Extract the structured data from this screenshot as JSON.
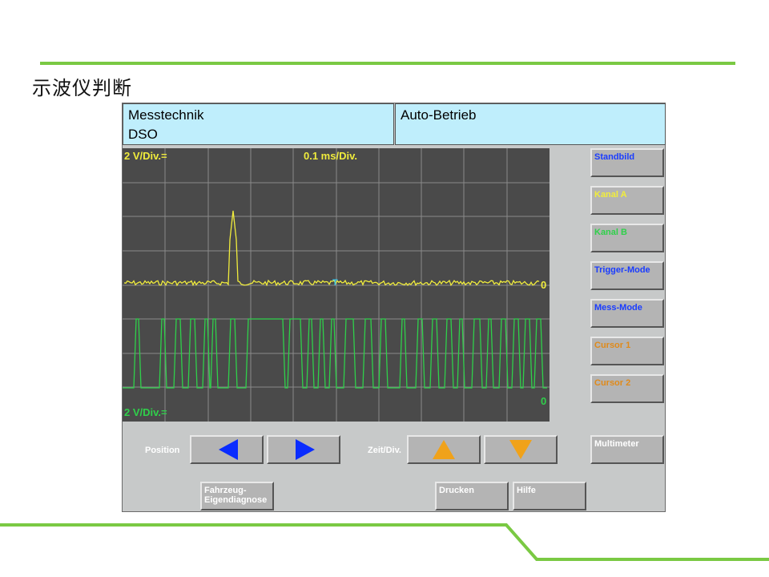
{
  "slide": {
    "title": "示波仪判断"
  },
  "header": {
    "left_line1": "Messtechnik",
    "left_line2": "DSO",
    "right_line1": "Auto-Betrieb"
  },
  "scope": {
    "channel_a_scale": "2 V/Div.=",
    "time_scale": "0.1 ms/Div.",
    "channel_b_scale": "2 V/Div.=",
    "channel_a_zero": "0",
    "channel_b_zero": "0",
    "trigger_marker": "T",
    "colors": {
      "channel_a": "#f0ec3c",
      "channel_b": "#2fd04a",
      "grid": "#8a8a8a",
      "background": "#4a4a4a"
    }
  },
  "side_buttons": [
    {
      "label": "Standbild",
      "color": "#1a3cff"
    },
    {
      "label": "Kanal A",
      "color": "#f2ee3a"
    },
    {
      "label": "Kanal B",
      "color": "#2fd04a"
    },
    {
      "label": "Trigger-Mode",
      "color": "#1a3cff"
    },
    {
      "label": "Mess-Mode",
      "color": "#1a3cff"
    },
    {
      "label": "Cursor 1",
      "color": "#e08a1a"
    },
    {
      "label": "Cursor 2",
      "color": "#e08a1a"
    }
  ],
  "controls": {
    "position_label": "Position",
    "zeit_label": "Zeit/Div.",
    "multimeter": "Multimeter",
    "fahrzeug_line1": "Fahrzeug-",
    "fahrzeug_line2": "Eigendiagnose",
    "drucken": "Drucken",
    "hilfe": "Hilfe",
    "arrow_colors": {
      "horizontal": "#0a2cff",
      "vertical": "#f0a21a"
    }
  }
}
